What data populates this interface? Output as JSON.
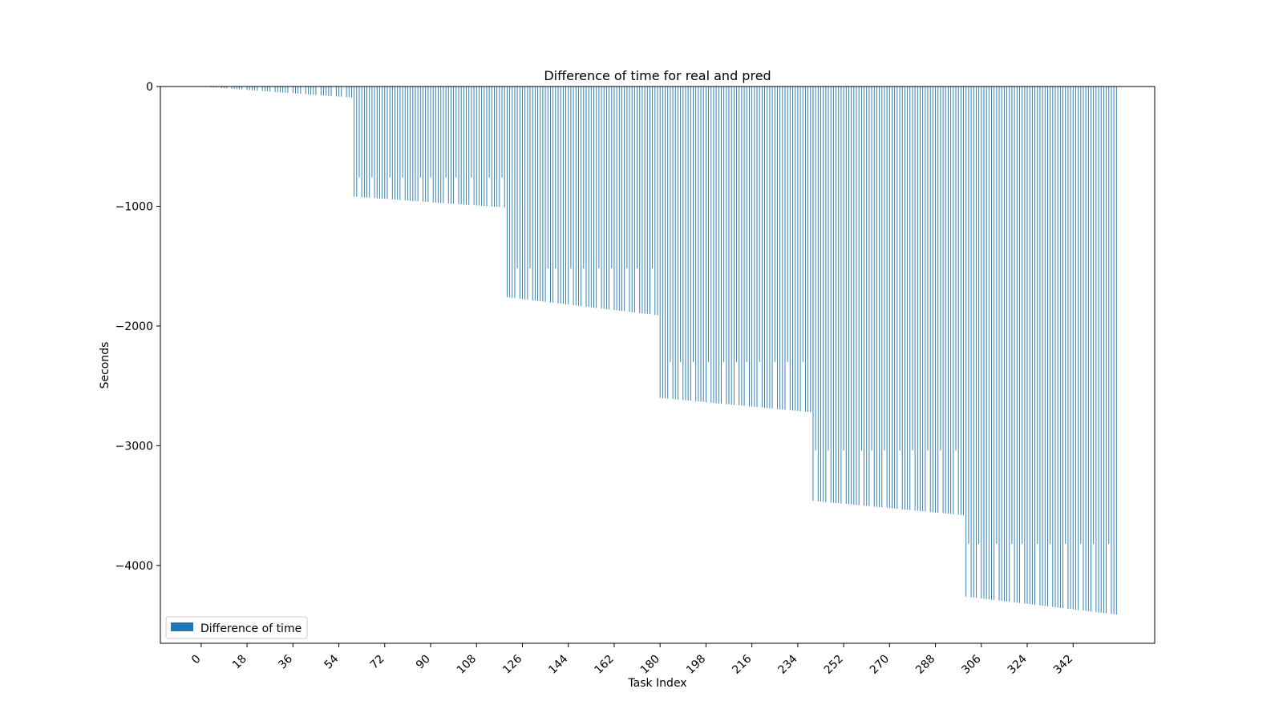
{
  "chart_data": {
    "type": "bar",
    "title": "Difference of time for real and pred",
    "xlabel": "Task Index",
    "ylabel": "Seconds",
    "ylim": [
      -4650,
      0
    ],
    "xlim": [
      -16,
      374
    ],
    "grid": false,
    "legend": {
      "placement": "lower-left",
      "entries": [
        {
          "label": "Difference of time",
          "color": "#1f77b4"
        }
      ]
    },
    "bar_color": "#1f77b4",
    "x_ticks": [
      0,
      18,
      36,
      54,
      72,
      90,
      108,
      126,
      144,
      162,
      180,
      198,
      216,
      234,
      252,
      270,
      288,
      306,
      324,
      342
    ],
    "x_tick_labels": [
      "0",
      "18",
      "36",
      "54",
      "72",
      "90",
      "108",
      "126",
      "144",
      "162",
      "180",
      "198",
      "216",
      "234",
      "252",
      "270",
      "288",
      "306",
      "324",
      "342"
    ],
    "y_ticks": [
      0,
      -1000,
      -2000,
      -3000,
      -4000
    ],
    "y_tick_labels": [
      "0",
      "−1000",
      "−2000",
      "−3000",
      "−4000"
    ],
    "series": [
      {
        "name": "Difference of time",
        "tiers": [
          {
            "from": 0,
            "to": 59,
            "start": 0,
            "end": -92
          },
          {
            "from": 60,
            "to": 119,
            "start": -920,
            "end": -1010
          },
          {
            "from": 120,
            "to": 179,
            "start": -1760,
            "end": -1910
          },
          {
            "from": 180,
            "to": 239,
            "start": -2600,
            "end": -2720
          },
          {
            "from": 240,
            "to": 299,
            "start": -3460,
            "end": -3580
          },
          {
            "from": 300,
            "to": 359,
            "start": -4260,
            "end": -4410
          }
        ],
        "tops": [
          {
            "from": 0,
            "to": 59,
            "value": 0
          },
          {
            "from": 60,
            "to": 119,
            "value": -760
          },
          {
            "from": 120,
            "to": 179,
            "value": -1520
          },
          {
            "from": 180,
            "to": 239,
            "value": -2300
          },
          {
            "from": 240,
            "to": 299,
            "value": -3040
          },
          {
            "from": 300,
            "to": 359,
            "value": -3820
          }
        ],
        "gaps": [
          3,
          7,
          11,
          17,
          23,
          28,
          35,
          40,
          46,
          52,
          56,
          62,
          67,
          74,
          79,
          86,
          90,
          96,
          100,
          106,
          113,
          118,
          124,
          129,
          136,
          139,
          145,
          150,
          156,
          161,
          167,
          171,
          177,
          184,
          188,
          193,
          199,
          205,
          210,
          214,
          219,
          225,
          230,
          236,
          241,
          246,
          252,
          259,
          263,
          268,
          274,
          279,
          285,
          290,
          296,
          301,
          305,
          312,
          318,
          322,
          328,
          333,
          339,
          345,
          350,
          356
        ]
      }
    ]
  }
}
